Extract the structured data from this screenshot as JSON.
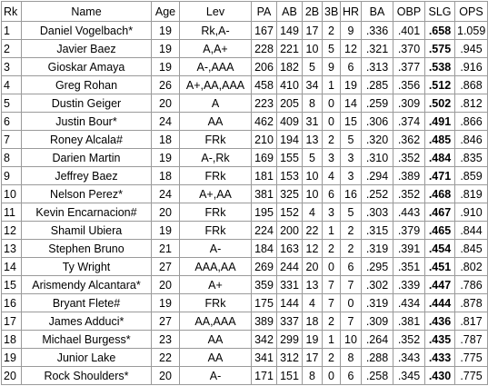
{
  "table": {
    "header": [
      "Rk",
      "Name",
      "Age",
      "Lev",
      "PA",
      "AB",
      "2B",
      "3B",
      "HR",
      "BA",
      "OBP",
      "SLG",
      "OPS"
    ],
    "bold_column": 11,
    "rows": [
      [
        "1",
        "Daniel Vogelbach*",
        "19",
        "Rk,A-",
        "167",
        "149",
        "17",
        "2",
        "9",
        ".336",
        ".401",
        ".658",
        "1.059"
      ],
      [
        "2",
        "Javier Baez",
        "19",
        "A,A+",
        "228",
        "221",
        "10",
        "5",
        "12",
        ".321",
        ".370",
        ".575",
        ".945"
      ],
      [
        "3",
        "Gioskar Amaya",
        "19",
        "A-,AAA",
        "206",
        "182",
        "5",
        "9",
        "6",
        ".313",
        ".377",
        ".538",
        ".916"
      ],
      [
        "4",
        "Greg Rohan",
        "26",
        "A+,AA,AAA",
        "458",
        "410",
        "34",
        "1",
        "19",
        ".285",
        ".356",
        ".512",
        ".868"
      ],
      [
        "5",
        "Dustin Geiger",
        "20",
        "A",
        "223",
        "205",
        "8",
        "0",
        "14",
        ".259",
        ".309",
        ".502",
        ".812"
      ],
      [
        "6",
        "Justin Bour*",
        "24",
        "AA",
        "462",
        "409",
        "31",
        "0",
        "15",
        ".306",
        ".374",
        ".491",
        ".866"
      ],
      [
        "7",
        "Roney Alcala#",
        "18",
        "FRk",
        "210",
        "194",
        "13",
        "2",
        "5",
        ".320",
        ".362",
        ".485",
        ".846"
      ],
      [
        "8",
        "Darien Martin",
        "19",
        "A-,Rk",
        "169",
        "155",
        "5",
        "3",
        "3",
        ".310",
        ".352",
        ".484",
        ".835"
      ],
      [
        "9",
        "Jeffrey Baez",
        "18",
        "FRk",
        "181",
        "153",
        "10",
        "4",
        "3",
        ".294",
        ".389",
        ".471",
        ".859"
      ],
      [
        "10",
        "Nelson Perez*",
        "24",
        "A+,AA",
        "381",
        "325",
        "10",
        "6",
        "16",
        ".252",
        ".352",
        ".468",
        ".819"
      ],
      [
        "11",
        "Kevin Encarnacion#",
        "20",
        "FRk",
        "195",
        "152",
        "4",
        "3",
        "5",
        ".303",
        ".443",
        ".467",
        ".910"
      ],
      [
        "12",
        "Shamil Ubiera",
        "19",
        "FRk",
        "224",
        "200",
        "22",
        "1",
        "2",
        ".315",
        ".379",
        ".465",
        ".844"
      ],
      [
        "13",
        "Stephen Bruno",
        "21",
        "A-",
        "184",
        "163",
        "12",
        "2",
        "2",
        ".319",
        ".391",
        ".454",
        ".845"
      ],
      [
        "14",
        "Ty Wright",
        "27",
        "AAA,AA",
        "269",
        "244",
        "20",
        "0",
        "6",
        ".295",
        ".351",
        ".451",
        ".802"
      ],
      [
        "15",
        "Arismendy Alcantara*",
        "20",
        "A+",
        "359",
        "331",
        "13",
        "7",
        "7",
        ".302",
        ".339",
        ".447",
        ".786"
      ],
      [
        "16",
        "Bryant Flete#",
        "19",
        "FRk",
        "175",
        "144",
        "4",
        "7",
        "0",
        ".319",
        ".434",
        ".444",
        ".878"
      ],
      [
        "17",
        "James Adduci*",
        "27",
        "AA,AAA",
        "389",
        "337",
        "18",
        "2",
        "7",
        ".309",
        ".381",
        ".436",
        ".817"
      ],
      [
        "18",
        "Michael Burgess*",
        "23",
        "AA",
        "342",
        "299",
        "19",
        "1",
        "10",
        ".264",
        ".352",
        ".435",
        ".787"
      ],
      [
        "19",
        "Junior Lake",
        "22",
        "AA",
        "341",
        "312",
        "17",
        "2",
        "8",
        ".288",
        ".343",
        ".433",
        ".775"
      ],
      [
        "20",
        "Rock Shoulders*",
        "20",
        "A-",
        "171",
        "151",
        "8",
        "0",
        "6",
        ".258",
        ".345",
        ".430",
        ".775"
      ]
    ]
  }
}
